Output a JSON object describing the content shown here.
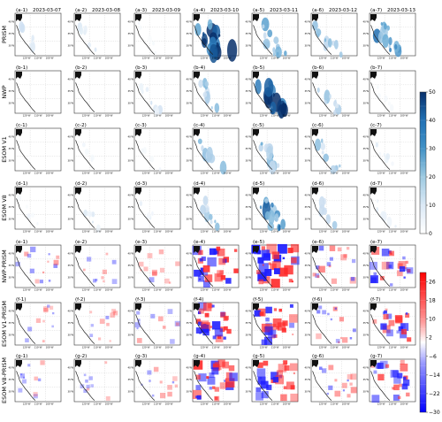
{
  "chart_data": {
    "type": "heatmap",
    "title": "",
    "columns": [
      {
        "panel_suffix": "1",
        "date": "2023-03-07"
      },
      {
        "panel_suffix": "2",
        "date": "2023-03-08"
      },
      {
        "panel_suffix": "3",
        "date": "2023-03-09"
      },
      {
        "panel_suffix": "4",
        "date": "2023-03-10"
      },
      {
        "panel_suffix": "5",
        "date": "2023-03-11"
      },
      {
        "panel_suffix": "6",
        "date": "2023-03-12"
      },
      {
        "panel_suffix": "7",
        "date": "2023-03-13"
      }
    ],
    "rows": [
      {
        "letter": "a",
        "label": "PRISM",
        "kind": "value"
      },
      {
        "letter": "b",
        "label": "NWP",
        "kind": "value"
      },
      {
        "letter": "c",
        "label": "ESOM V1",
        "kind": "value"
      },
      {
        "letter": "d",
        "label": "ESOM V8",
        "kind": "value"
      },
      {
        "letter": "e",
        "label": "NWP-PRISM",
        "kind": "diff"
      },
      {
        "letter": "f",
        "label": "ESOM V1-PRISM",
        "kind": "diff"
      },
      {
        "letter": "g",
        "label": "ESOM V8-PRISM",
        "kind": "diff"
      }
    ],
    "map_lat_ticks": [
      "40°N",
      "35°N",
      "30°N"
    ],
    "map_lon_ticks": [
      "120°W",
      "110°W",
      "100°W"
    ],
    "colorbars": [
      {
        "kind": "value",
        "range": [
          0,
          50
        ],
        "ticks": [
          0,
          10,
          20,
          30,
          40,
          50
        ],
        "low_color": "#ffffff",
        "high_color": "#08306b"
      },
      {
        "kind": "diff",
        "range": [
          -30,
          30
        ],
        "ticks": [
          -30,
          -22,
          -14,
          -6,
          2,
          10,
          18,
          26
        ],
        "low_color": "#0000ff",
        "high_color": "#ff0000"
      }
    ],
    "panel_intensity": {
      "a": [
        0.15,
        0.12,
        0.05,
        0.9,
        0.5,
        0.35,
        0.6
      ],
      "b": [
        0.0,
        0.0,
        0.15,
        0.35,
        0.9,
        0.3,
        0.05
      ],
      "c": [
        0.0,
        0.05,
        0.05,
        0.35,
        0.45,
        0.3,
        0.1
      ],
      "d": [
        0.05,
        0.12,
        0.08,
        0.3,
        0.6,
        0.25,
        0.1
      ],
      "e": [
        0.25,
        0.15,
        0.2,
        0.8,
        0.95,
        0.4,
        0.6
      ],
      "f": [
        0.15,
        0.15,
        0.2,
        0.8,
        0.7,
        0.3,
        0.6
      ],
      "g": [
        0.15,
        0.12,
        0.2,
        0.8,
        0.7,
        0.3,
        0.6
      ]
    }
  }
}
